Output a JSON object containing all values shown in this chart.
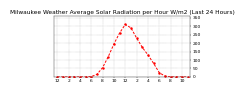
{
  "title": "Milwaukee Weather Average Solar Radiation per Hour W/m2 (Last 24 Hours)",
  "hours": [
    0,
    1,
    2,
    3,
    4,
    5,
    6,
    7,
    8,
    9,
    10,
    11,
    12,
    13,
    14,
    15,
    16,
    17,
    18,
    19,
    20,
    21,
    22,
    23
  ],
  "values": [
    0,
    0,
    0,
    0,
    0,
    0,
    2,
    15,
    55,
    120,
    195,
    260,
    310,
    290,
    230,
    175,
    130,
    80,
    25,
    5,
    0,
    0,
    0,
    0
  ],
  "line_color": "#ff0000",
  "bg_color": "#ffffff",
  "grid_color": "#999999",
  "y_ticks": [
    0,
    50,
    100,
    150,
    200,
    250,
    300,
    350
  ],
  "ylim": [
    0,
    360
  ],
  "xlim": [
    -0.5,
    23.5
  ],
  "title_fontsize": 4.2,
  "tick_fontsize": 3.2,
  "x_tick_positions": [
    0,
    2,
    4,
    6,
    8,
    10,
    12,
    14,
    16,
    18,
    20,
    22
  ],
  "x_tick_labels": [
    "12",
    "2",
    "4",
    "6",
    "8",
    "10",
    "12",
    "2",
    "4",
    "6",
    "8",
    "10"
  ],
  "grid_x_positions": [
    0,
    2,
    4,
    6,
    8,
    10,
    12,
    14,
    16,
    18,
    20,
    22
  ]
}
